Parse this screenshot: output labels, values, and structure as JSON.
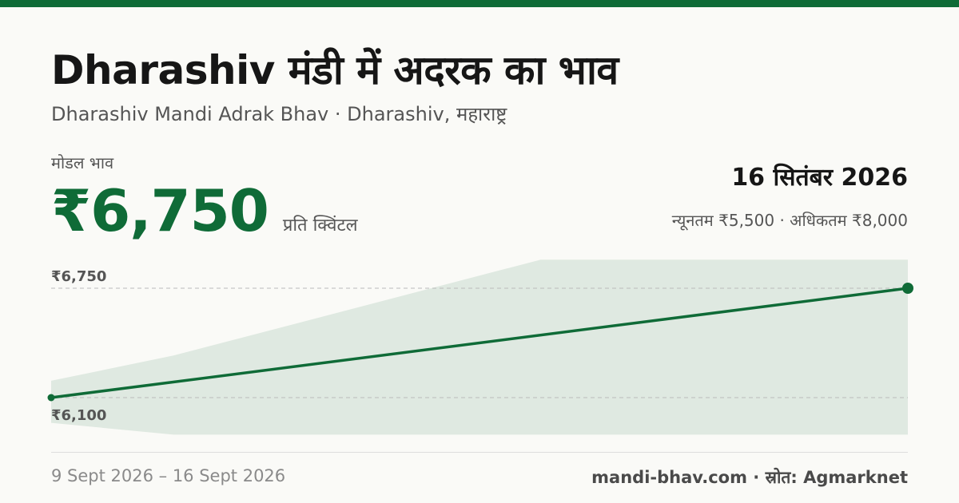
{
  "header": {
    "title": "Dharashiv मंडी में अदरक का भाव",
    "subtitle": "Dharashiv Mandi Adrak Bhav · Dharashiv, महाराष्ट्र"
  },
  "price": {
    "label": "मोडल भाव",
    "value": "₹6,750",
    "unit": "प्रति क्विंटल"
  },
  "summary": {
    "date": "16 सितंबर 2026",
    "minmax": "न्यूनतम ₹5,500 · अधिकतम ₹8,000"
  },
  "footer": {
    "range": "9 Sept 2026 – 16 Sept 2026",
    "source": "mandi-bhav.com · स्रोत: Agmarknet"
  },
  "colors": {
    "accent": "#0f6b37",
    "band": "#dfe9e1",
    "grid": "#bbbbbb"
  },
  "chart_data": {
    "type": "line",
    "x": [
      "2026-09-09",
      "2026-09-16"
    ],
    "series": [
      {
        "values": [
          6100,
          6750
        ]
      }
    ],
    "band": {
      "x": [
        "2026-09-09",
        "2026-09-10",
        "2026-09-13",
        "2026-09-16"
      ],
      "min": [
        5950,
        5880,
        5880,
        5880
      ],
      "max": [
        6200,
        6350,
        6920,
        6920
      ]
    },
    "reference_labels": [
      "₹6,750",
      "₹6,100"
    ],
    "reference_values": [
      6750,
      6100
    ],
    "grid": false,
    "title": "",
    "xlabel": "",
    "ylabel": ""
  }
}
